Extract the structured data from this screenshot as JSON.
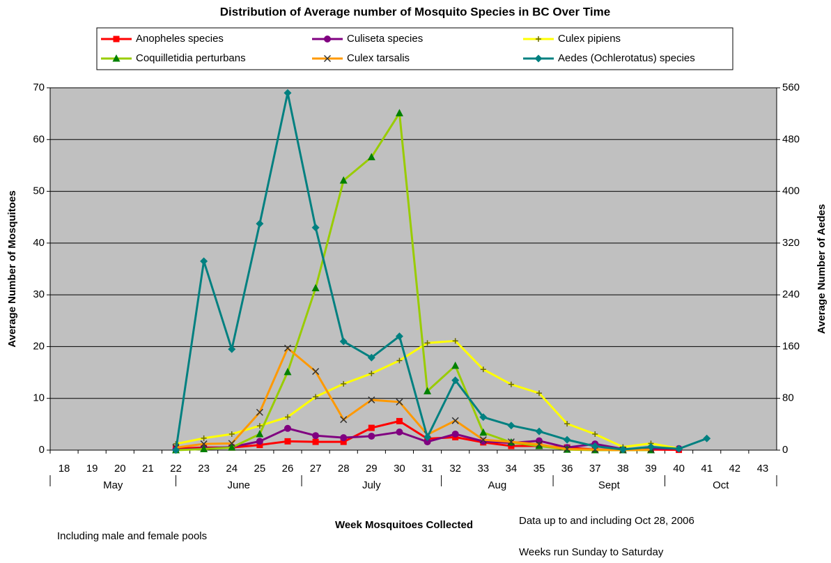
{
  "chart_data": {
    "type": "line",
    "title": "Distribution of Average number of Mosquito Species in BC Over Time",
    "ylabel": "Average Number of Mosquitoes",
    "y2label": "Average Number of Aedes",
    "xlabel": "Week Mosquitoes Collected",
    "annotations": [
      "Including male and female pools",
      "Data up to and including Oct 28, 2006",
      "Weeks run Sunday to Saturday"
    ],
    "categories": [
      "18",
      "19",
      "20",
      "21",
      "22",
      "23",
      "24",
      "25",
      "26",
      "27",
      "28",
      "29",
      "30",
      "31",
      "32",
      "33",
      "34",
      "35",
      "36",
      "37",
      "38",
      "39",
      "40",
      "41",
      "42",
      "43"
    ],
    "months": [
      "May",
      "June",
      "July",
      "Aug",
      "Sept",
      "Oct"
    ],
    "ylim": [
      0,
      70
    ],
    "yticks": [
      0,
      10,
      20,
      30,
      40,
      50,
      60,
      70
    ],
    "y2lim": [
      0,
      560
    ],
    "y2ticks": [
      0,
      80,
      160,
      240,
      320,
      400,
      480,
      560
    ],
    "grid": true,
    "series": [
      {
        "name": "Anopheles species",
        "color": "#ff0000",
        "marker": "square",
        "values": [
          null,
          null,
          null,
          null,
          0.3,
          0.5,
          0.5,
          1.0,
          1.7,
          1.6,
          1.6,
          4.3,
          5.6,
          2.2,
          2.5,
          1.5,
          0.8,
          0.8,
          0.5,
          0.1,
          0.1,
          0.1,
          0.05,
          null,
          null,
          null
        ]
      },
      {
        "name": "Culiseta species",
        "color": "#800080",
        "marker": "circle",
        "values": [
          null,
          null,
          null,
          null,
          0.1,
          0.3,
          0.6,
          1.7,
          4.2,
          2.8,
          2.4,
          2.7,
          3.5,
          1.6,
          3.1,
          1.7,
          1.4,
          1.8,
          0.5,
          1.2,
          0.2,
          0.3,
          0.3,
          null,
          null,
          null
        ]
      },
      {
        "name": "Culex pipiens",
        "color": "#ffff00",
        "marker": "plus",
        "values": [
          null,
          null,
          null,
          null,
          1.2,
          2.3,
          3.1,
          4.7,
          6.4,
          10.3,
          12.8,
          14.8,
          17.3,
          20.7,
          21.1,
          15.6,
          12.7,
          11.0,
          5.1,
          3.1,
          0.6,
          1.3,
          0.3,
          null,
          null,
          null
        ]
      },
      {
        "name": "Coquilletidia perturbans",
        "color": "#99cc00",
        "marker": "triangle",
        "values": [
          null,
          null,
          null,
          null,
          0.0,
          0.2,
          0.5,
          3.1,
          15.1,
          31.3,
          52.1,
          56.6,
          65.1,
          11.4,
          16.3,
          3.4,
          1.5,
          0.8,
          0.1,
          0.0,
          0.0,
          0.0,
          null,
          null,
          null,
          null
        ]
      },
      {
        "name": "Culex tarsalis",
        "color": "#ff9900",
        "marker": "x",
        "values": [
          null,
          null,
          null,
          null,
          0.5,
          1.2,
          1.3,
          7.3,
          19.7,
          15.2,
          5.9,
          9.7,
          9.3,
          3.0,
          5.7,
          2.0,
          1.6,
          1.1,
          0.2,
          0.1,
          0.0,
          0.1,
          null,
          null,
          null,
          null
        ]
      },
      {
        "name": "Aedes (Ochlerotatus) species",
        "color": "#008080",
        "marker": "diamond",
        "axis": "y2",
        "values": [
          null,
          null,
          null,
          null,
          0,
          292,
          156,
          350,
          552,
          344,
          168,
          143,
          176,
          20,
          108,
          51,
          38,
          29,
          16,
          6,
          1,
          5,
          2,
          18,
          null,
          null
        ]
      }
    ]
  }
}
